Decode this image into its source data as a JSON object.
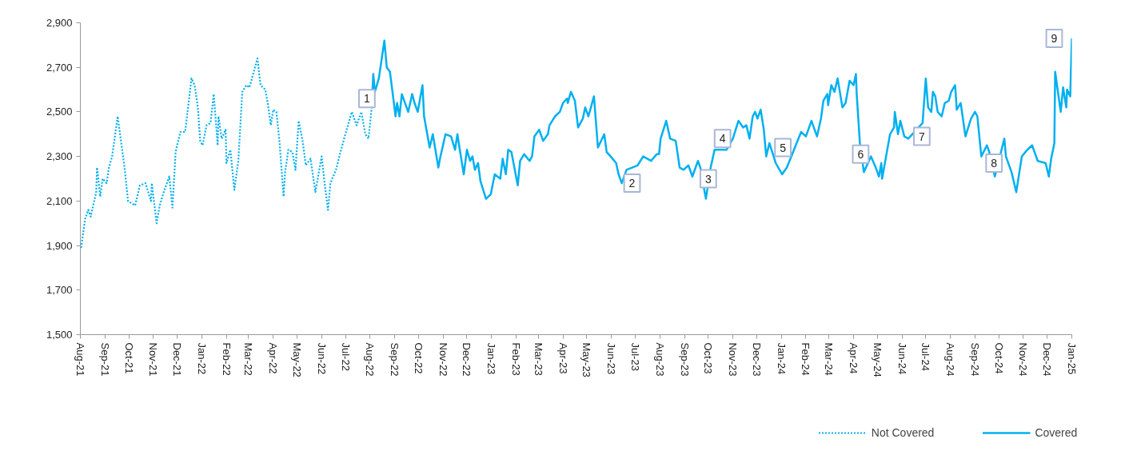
{
  "chart_data": {
    "type": "line",
    "x": [
      "2021-08-02",
      "2021-08-07",
      "2021-08-11",
      "2021-08-14",
      "2021-08-21",
      "2021-08-22",
      "2021-08-26",
      "2021-08-29",
      "2021-09-03",
      "2021-09-06",
      "2021-09-10",
      "2021-09-17",
      "2021-09-20",
      "2021-09-26",
      "2021-09-30",
      "2021-10-09",
      "2021-10-15",
      "2021-10-22",
      "2021-10-29",
      "2021-10-30",
      "2021-11-05",
      "2021-11-09",
      "2021-11-14",
      "2021-11-21",
      "2021-11-25",
      "2021-11-29",
      "2021-12-05",
      "2021-12-11",
      "2021-12-19",
      "2021-12-23",
      "2021-12-27",
      "2021-12-30",
      "2022-01-02",
      "2022-01-07",
      "2022-01-12",
      "2022-01-16",
      "2022-01-21",
      "2022-01-22",
      "2022-01-26",
      "2022-01-31",
      "2022-02-01",
      "2022-02-06",
      "2022-02-11",
      "2022-02-16",
      "2022-02-21",
      "2022-02-26",
      "2022-03-02",
      "2022-03-09",
      "2022-03-12",
      "2022-03-16",
      "2022-03-22",
      "2022-03-25",
      "2022-03-29",
      "2022-04-01",
      "2022-04-05",
      "2022-04-09",
      "2022-04-14",
      "2022-04-16",
      "2022-04-20",
      "2022-04-25",
      "2022-04-29",
      "2022-05-03",
      "2022-05-08",
      "2022-05-12",
      "2022-05-18",
      "2022-05-24",
      "2022-06-01",
      "2022-06-05",
      "2022-06-09",
      "2022-06-12",
      "2022-06-19",
      "2022-06-24",
      "2022-06-30",
      "2022-07-09",
      "2022-07-15",
      "2022-07-21",
      "2022-07-26",
      "2022-07-30",
      "2022-08-03"
    ],
    "series": [
      {
        "name": "Not Covered",
        "color": "#00b0f0",
        "line_style": "dotted",
        "values": [
          1890,
          2020,
          2060,
          2030,
          2140,
          2250,
          2120,
          2200,
          2180,
          2250,
          2300,
          2480,
          2400,
          2240,
          2100,
          2080,
          2170,
          2180,
          2100,
          2180,
          2000,
          2080,
          2140,
          2210,
          2070,
          2320,
          2410,
          2410,
          2650,
          2620,
          2520,
          2370,
          2350,
          2440,
          2450,
          2580,
          2350,
          2480,
          2380,
          2420,
          2270,
          2330,
          2150,
          2280,
          2590,
          2620,
          2610,
          2700,
          2740,
          2620,
          2600,
          2540,
          2440,
          2510,
          2500,
          2360,
          2120,
          2230,
          2330,
          2320,
          2240,
          2460,
          2370,
          2260,
          2290,
          2140,
          2300,
          2170,
          2060,
          2180,
          2240,
          2310,
          2390,
          2500,
          2440,
          2500,
          2400,
          2380,
          2520
        ]
      },
      {
        "name": "Covered",
        "color": "#00b0f0",
        "line_style": "solid",
        "x": [
          "2022-08-03",
          "2022-08-05",
          "2022-08-07",
          "2022-08-12",
          "2022-08-19",
          "2022-08-22",
          "2022-08-26",
          "2022-08-31",
          "2022-09-02",
          "2022-09-04",
          "2022-09-07",
          "2022-09-10",
          "2022-09-15",
          "2022-09-18",
          "2022-09-23",
          "2022-09-26",
          "2022-09-30",
          "2022-10-06",
          "2022-10-08",
          "2022-10-15",
          "2022-10-19",
          "2022-10-26",
          "2022-10-28",
          "2022-11-04",
          "2022-11-11",
          "2022-11-16",
          "2022-11-19",
          "2022-11-22",
          "2022-11-27",
          "2022-12-01",
          "2022-12-05",
          "2022-12-08",
          "2022-12-11",
          "2022-12-15",
          "2022-12-18",
          "2022-12-25",
          "2022-12-31",
          "2023-01-05",
          "2023-01-12",
          "2023-01-15",
          "2023-01-19",
          "2023-01-22",
          "2023-01-26",
          "2023-02-03",
          "2023-02-06",
          "2023-02-11",
          "2023-02-18",
          "2023-02-21",
          "2023-02-24",
          "2023-03-02",
          "2023-03-07",
          "2023-03-13",
          "2023-03-15",
          "2023-03-22",
          "2023-03-28",
          "2023-04-01",
          "2023-04-06",
          "2023-04-07",
          "2023-04-11",
          "2023-04-16",
          "2023-04-20",
          "2023-04-26",
          "2023-04-29",
          "2023-05-03",
          "2023-05-10",
          "2023-05-15",
          "2023-05-23",
          "2023-05-26",
          "2023-05-31",
          "2023-06-07",
          "2023-06-10",
          "2023-06-14",
          "2023-06-20",
          "2023-07-04",
          "2023-07-11",
          "2023-07-21",
          "2023-07-28",
          "2023-07-31",
          "2023-08-02",
          "2023-08-09",
          "2023-08-14",
          "2023-08-21",
          "2023-08-26",
          "2023-08-31",
          "2023-09-06",
          "2023-09-11",
          "2023-09-18",
          "2023-09-21",
          "2023-09-28",
          "2023-10-04",
          "2023-10-09",
          "2023-10-24",
          "2023-11-01",
          "2023-11-08",
          "2023-11-14",
          "2023-11-18",
          "2023-11-22",
          "2023-11-26",
          "2023-11-29",
          "2023-12-02",
          "2023-12-06",
          "2023-12-10",
          "2023-12-13",
          "2023-12-17",
          "2023-12-25",
          "2024-01-02",
          "2024-01-08",
          "2024-01-17",
          "2024-01-26",
          "2024-02-01",
          "2024-02-08",
          "2024-02-15",
          "2024-02-20",
          "2024-02-23",
          "2024-02-28",
          "2024-02-29",
          "2024-03-04",
          "2024-03-08",
          "2024-03-12",
          "2024-03-18",
          "2024-03-22",
          "2024-03-27",
          "2024-04-01",
          "2024-04-04",
          "2024-04-05",
          "2024-04-09",
          "2024-04-14",
          "2024-04-23",
          "2024-04-29",
          "2024-05-03",
          "2024-05-06",
          "2024-05-07",
          "2024-05-12",
          "2024-05-17",
          "2024-05-22",
          "2024-05-23",
          "2024-05-27",
          "2024-05-30",
          "2024-06-04",
          "2024-06-09",
          "2024-06-27",
          "2024-07-01",
          "2024-07-04",
          "2024-07-08",
          "2024-07-10",
          "2024-07-13",
          "2024-07-16",
          "2024-07-21",
          "2024-07-25",
          "2024-07-30",
          "2024-08-02",
          "2024-08-07",
          "2024-08-09",
          "2024-08-14",
          "2024-08-20",
          "2024-08-27",
          "2024-09-01",
          "2024-09-04",
          "2024-09-09",
          "2024-09-16",
          "2024-09-19",
          "2024-09-26",
          "2024-10-08",
          "2024-10-10",
          "2024-10-17",
          "2024-10-23",
          "2024-10-30",
          "2024-11-06",
          "2024-11-12",
          "2024-11-19",
          "2024-11-29",
          "2024-12-03",
          "2024-12-06",
          "2024-12-10",
          "2024-12-11",
          "2024-12-18",
          "2024-12-21",
          "2024-12-25",
          "2024-12-26",
          "2024-12-30",
          "2025-01-01"
        ],
        "values": [
          2520,
          2670,
          2590,
          2650,
          2820,
          2700,
          2680,
          2540,
          2480,
          2540,
          2480,
          2580,
          2530,
          2500,
          2580,
          2540,
          2500,
          2620,
          2480,
          2340,
          2400,
          2250,
          2290,
          2400,
          2390,
          2330,
          2400,
          2330,
          2220,
          2330,
          2280,
          2300,
          2240,
          2270,
          2190,
          2110,
          2130,
          2220,
          2200,
          2290,
          2220,
          2330,
          2320,
          2170,
          2280,
          2310,
          2280,
          2300,
          2390,
          2420,
          2370,
          2400,
          2440,
          2480,
          2500,
          2540,
          2560,
          2540,
          2590,
          2550,
          2430,
          2470,
          2520,
          2480,
          2570,
          2340,
          2400,
          2320,
          2300,
          2270,
          2220,
          2180,
          2240,
          2260,
          2300,
          2280,
          2310,
          2310,
          2380,
          2460,
          2380,
          2370,
          2250,
          2240,
          2260,
          2210,
          2280,
          2250,
          2110,
          2250,
          2330,
          2330,
          2380,
          2460,
          2430,
          2440,
          2380,
          2480,
          2500,
          2470,
          2510,
          2420,
          2300,
          2360,
          2270,
          2220,
          2250,
          2330,
          2410,
          2390,
          2460,
          2390,
          2470,
          2550,
          2580,
          2530,
          2620,
          2590,
          2650,
          2520,
          2540,
          2640,
          2620,
          2670,
          2580,
          2360,
          2230,
          2300,
          2250,
          2210,
          2270,
          2200,
          2300,
          2400,
          2430,
          2500,
          2400,
          2460,
          2390,
          2380,
          2450,
          2650,
          2520,
          2500,
          2590,
          2570,
          2500,
          2480,
          2540,
          2550,
          2590,
          2620,
          2510,
          2540,
          2390,
          2470,
          2500,
          2480,
          2300,
          2350,
          2320,
          2210,
          2380,
          2300,
          2230,
          2140,
          2300,
          2330,
          2350,
          2280,
          2270,
          2210,
          2290,
          2360,
          2680,
          2500,
          2610,
          2520,
          2600,
          2570,
          2830
        ]
      }
    ],
    "xlim": [
      "2021-08-01",
      "2025-01-01"
    ],
    "xticks": [
      {
        "value": "2021-08-01",
        "label": "Aug-21"
      },
      {
        "value": "2021-09-01",
        "label": "Sep-21"
      },
      {
        "value": "2021-10-01",
        "label": "Oct-21"
      },
      {
        "value": "2021-11-01",
        "label": "Nov-21"
      },
      {
        "value": "2021-12-01",
        "label": "Dec-21"
      },
      {
        "value": "2022-01-01",
        "label": "Jan-22"
      },
      {
        "value": "2022-02-01",
        "label": "Feb-22"
      },
      {
        "value": "2022-03-01",
        "label": "Mar-22"
      },
      {
        "value": "2022-04-01",
        "label": "Apr-22"
      },
      {
        "value": "2022-05-01",
        "label": "May-22"
      },
      {
        "value": "2022-06-01",
        "label": "Jun-22"
      },
      {
        "value": "2022-07-01",
        "label": "Jul-22"
      },
      {
        "value": "2022-08-01",
        "label": "Aug-22"
      },
      {
        "value": "2022-09-01",
        "label": "Sep-22"
      },
      {
        "value": "2022-10-01",
        "label": "Oct-22"
      },
      {
        "value": "2022-11-01",
        "label": "Nov-22"
      },
      {
        "value": "2022-12-01",
        "label": "Dec-22"
      },
      {
        "value": "2023-01-01",
        "label": "Jan-23"
      },
      {
        "value": "2023-02-01",
        "label": "Feb-23"
      },
      {
        "value": "2023-03-01",
        "label": "Mar-23"
      },
      {
        "value": "2023-04-01",
        "label": "Apr-23"
      },
      {
        "value": "2023-05-01",
        "label": "May-23"
      },
      {
        "value": "2023-06-01",
        "label": "Jun-23"
      },
      {
        "value": "2023-07-01",
        "label": "Jul-23"
      },
      {
        "value": "2023-08-01",
        "label": "Aug-23"
      },
      {
        "value": "2023-09-01",
        "label": "Sep-23"
      },
      {
        "value": "2023-10-01",
        "label": "Oct-23"
      },
      {
        "value": "2023-11-01",
        "label": "Nov-23"
      },
      {
        "value": "2023-12-01",
        "label": "Dec-23"
      },
      {
        "value": "2024-01-01",
        "label": "Jan-24"
      },
      {
        "value": "2024-02-01",
        "label": "Feb-24"
      },
      {
        "value": "2024-03-01",
        "label": "Mar-24"
      },
      {
        "value": "2024-04-01",
        "label": "Apr-24"
      },
      {
        "value": "2024-05-01",
        "label": "May-24"
      },
      {
        "value": "2024-06-01",
        "label": "Jun-24"
      },
      {
        "value": "2024-07-01",
        "label": "Jul-24"
      },
      {
        "value": "2024-08-01",
        "label": "Aug-24"
      },
      {
        "value": "2024-09-01",
        "label": "Sep-24"
      },
      {
        "value": "2024-10-01",
        "label": "Oct-24"
      },
      {
        "value": "2024-11-01",
        "label": "Nov-24"
      },
      {
        "value": "2024-12-01",
        "label": "Dec-24"
      },
      {
        "value": "2025-01-01",
        "label": "Jan-25"
      }
    ],
    "ylim": [
      1500,
      2900
    ],
    "yticks": [
      {
        "value": 1500,
        "label": "1,500"
      },
      {
        "value": 1700,
        "label": "1,700"
      },
      {
        "value": 1900,
        "label": "1,900"
      },
      {
        "value": 2100,
        "label": "2,100"
      },
      {
        "value": 2300,
        "label": "2,300"
      },
      {
        "value": 2500,
        "label": "2,500"
      },
      {
        "value": 2700,
        "label": "2,700"
      },
      {
        "value": 2900,
        "label": "2,900"
      }
    ],
    "annotations": [
      {
        "text": "1",
        "x": "2022-07-28",
        "y": 2560
      },
      {
        "text": "2",
        "x": "2023-06-27",
        "y": 2180
      },
      {
        "text": "3",
        "x": "2023-10-01",
        "y": 2200
      },
      {
        "text": "4",
        "x": "2023-10-19",
        "y": 2380
      },
      {
        "text": "5",
        "x": "2024-01-03",
        "y": 2340
      },
      {
        "text": "6",
        "x": "2024-04-10",
        "y": 2310
      },
      {
        "text": "7",
        "x": "2024-06-26",
        "y": 2390
      },
      {
        "text": "8",
        "x": "2024-09-25",
        "y": 2270
      },
      {
        "text": "9",
        "x": "2025-01-01",
        "y": 2830
      }
    ],
    "grid": false,
    "legend": "bottom"
  }
}
